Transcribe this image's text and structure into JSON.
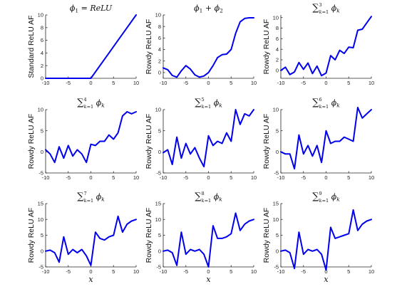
{
  "colors": {
    "series": "#0000EE",
    "axis": "#262626"
  },
  "chart_data": [
    {
      "type": "line",
      "title": "ϕ1 = ReLU",
      "ylabel": "Standard ReLU AF",
      "xlabel": "",
      "xlim": [
        -10,
        10
      ],
      "ylim": [
        0,
        10
      ],
      "xticks": [
        -10,
        -5,
        0,
        5,
        10
      ],
      "yticks": [
        0,
        2,
        4,
        6,
        8,
        10
      ],
      "x": [
        -10,
        -8,
        -6,
        -4,
        -2,
        0,
        2,
        4,
        6,
        8,
        10
      ],
      "y": [
        0,
        0,
        0,
        0,
        0,
        0,
        2,
        4,
        6,
        8,
        10
      ]
    },
    {
      "type": "line",
      "title": "ϕ1 + ϕ2",
      "ylabel": "Rowdy ReLU AF",
      "xlabel": "",
      "xlim": [
        -10,
        10
      ],
      "ylim": [
        -1,
        10
      ],
      "xticks": [
        -10,
        -5,
        0,
        5,
        10
      ],
      "yticks": [
        0,
        2,
        4,
        6,
        8,
        10
      ],
      "x": [
        -10,
        -9,
        -8,
        -7,
        -6,
        -5,
        -4,
        -3,
        -2,
        -1,
        0,
        1,
        2,
        3,
        4,
        5,
        6,
        7,
        8,
        9,
        10
      ],
      "y": [
        0.8,
        0.5,
        -0.5,
        -0.8,
        0.3,
        1.2,
        0.6,
        -0.4,
        -0.8,
        -0.6,
        0,
        1.2,
        2.6,
        3.1,
        3.2,
        4,
        6.8,
        8.8,
        9.4,
        9.5,
        9.5
      ]
    },
    {
      "type": "line",
      "title": "∑k=1..3 ϕk",
      "ylabel": "Rowdy ReLU AF",
      "xlabel": "",
      "xlim": [
        -10,
        10
      ],
      "ylim": [
        -1.5,
        10.5
      ],
      "xticks": [
        -10,
        -5,
        0,
        5,
        10
      ],
      "yticks": [
        0,
        2,
        4,
        6,
        8,
        10
      ],
      "x": [
        -10,
        -9,
        -8,
        -7,
        -6,
        -5,
        -4,
        -3,
        -2,
        -1,
        0,
        1,
        2,
        3,
        4,
        5,
        6,
        7,
        8,
        9,
        10
      ],
      "y": [
        0,
        0.6,
        -0.8,
        -0.3,
        1.5,
        0.2,
        1.4,
        -0.6,
        0.8,
        -1,
        -0.5,
        2.8,
        2,
        3.8,
        3.2,
        4.4,
        4.3,
        7.6,
        7.8,
        9,
        10.2
      ]
    },
    {
      "type": "line",
      "title": "∑k=1..4 ϕk",
      "ylabel": "Rowdy ReLU AF",
      "xlabel": "",
      "xlim": [
        -10,
        10
      ],
      "ylim": [
        -5,
        10
      ],
      "xticks": [
        -10,
        -5,
        0,
        5,
        10
      ],
      "yticks": [
        -5,
        0,
        5,
        10
      ],
      "x": [
        -10,
        -9,
        -8,
        -7,
        -6,
        -5,
        -4,
        -3,
        -2,
        -1,
        0,
        1,
        2,
        3,
        4,
        5,
        6,
        7,
        8,
        9,
        10
      ],
      "y": [
        0.5,
        -0.5,
        -2.5,
        1.2,
        -1.5,
        1.5,
        -1,
        0.5,
        -0.5,
        -2.5,
        1.8,
        1.5,
        2.5,
        2.5,
        4,
        3,
        4.5,
        8.5,
        9.5,
        9,
        9.5
      ]
    },
    {
      "type": "line",
      "title": "∑k=1..5 ϕk",
      "ylabel": "Rowdy ReLU AF",
      "xlabel": "",
      "xlim": [
        -10,
        10
      ],
      "ylim": [
        -5,
        10
      ],
      "xticks": [
        -10,
        -5,
        0,
        5,
        10
      ],
      "yticks": [
        -5,
        0,
        5,
        10
      ],
      "x": [
        -10,
        -9,
        -8,
        -7,
        -6,
        -5,
        -4,
        -3,
        -2,
        -1,
        0,
        1,
        2,
        3,
        4,
        5,
        6,
        7,
        8,
        9,
        10
      ],
      "y": [
        -0.2,
        0.5,
        -3,
        3.5,
        -1.5,
        2,
        -0.5,
        1,
        -1.5,
        -3.5,
        3.8,
        1.5,
        2.5,
        2,
        4.5,
        2.5,
        10,
        6.5,
        9,
        8.5,
        10
      ]
    },
    {
      "type": "line",
      "title": "∑k=1..6 ϕk",
      "ylabel": "Rowdy ReLU AF",
      "xlabel": "",
      "xlim": [
        -10,
        10
      ],
      "ylim": [
        -5,
        10
      ],
      "xticks": [
        -10,
        -5,
        0,
        5,
        10
      ],
      "yticks": [
        -5,
        0,
        5,
        10
      ],
      "x": [
        -10,
        -9,
        -8,
        -7,
        -6,
        -5,
        -4,
        -3,
        -2,
        -1,
        0,
        1,
        2,
        3,
        4,
        5,
        6,
        7,
        8,
        9,
        10
      ],
      "y": [
        0,
        -0.5,
        -0.5,
        -4,
        4,
        -0.5,
        1.5,
        -1,
        1.5,
        -2.5,
        5,
        2,
        2.5,
        2.5,
        3.5,
        3,
        2.5,
        10.5,
        8,
        9,
        10
      ]
    },
    {
      "type": "line",
      "title": "∑k=1..7 ϕk",
      "ylabel": "Rowdy ReLU AF",
      "xlabel": "x",
      "xlim": [
        -10,
        10
      ],
      "ylim": [
        -5,
        15
      ],
      "xticks": [
        -10,
        -5,
        0,
        5,
        10
      ],
      "yticks": [
        -5,
        0,
        5,
        10,
        15
      ],
      "x": [
        -10,
        -9,
        -8,
        -7,
        -6,
        -5,
        -4,
        -3,
        -2,
        -1,
        0,
        1,
        2,
        3,
        4,
        5,
        6,
        7,
        8,
        9,
        10
      ],
      "y": [
        0,
        0.3,
        -0.5,
        -3.5,
        4.5,
        -1,
        0.5,
        -0.5,
        0.5,
        -1.5,
        -4.5,
        6,
        4,
        3.5,
        4.5,
        5,
        11,
        6,
        8.5,
        9.5,
        10
      ]
    },
    {
      "type": "line",
      "title": "∑k=1..8 ϕk",
      "ylabel": "Rowdy ReLU AF",
      "xlabel": "x",
      "xlim": [
        -10,
        10
      ],
      "ylim": [
        -5,
        15
      ],
      "xticks": [
        -10,
        -5,
        0,
        5,
        10
      ],
      "yticks": [
        -5,
        0,
        5,
        10,
        15
      ],
      "x": [
        -10,
        -9,
        -8,
        -7,
        -6,
        -5,
        -4,
        -3,
        -2,
        -1,
        0,
        1,
        2,
        3,
        4,
        5,
        6,
        7,
        8,
        9,
        10
      ],
      "y": [
        0,
        0.3,
        -0.5,
        -4.5,
        6,
        -1,
        0.5,
        0,
        0.5,
        -1,
        -5,
        8,
        4,
        4,
        4.5,
        5.5,
        12,
        6.5,
        8.5,
        9.5,
        10
      ]
    },
    {
      "type": "line",
      "title": "∑k=1..9 ϕk",
      "ylabel": "Rowdy ReLU AF",
      "xlabel": "x",
      "xlim": [
        -10,
        10
      ],
      "ylim": [
        -5,
        15
      ],
      "xticks": [
        -10,
        -5,
        0,
        5,
        10
      ],
      "yticks": [
        -5,
        0,
        5,
        10,
        15
      ],
      "x": [
        -10,
        -9,
        -8,
        -7,
        -6,
        -5,
        -4,
        -3,
        -2,
        -1,
        0,
        1,
        2,
        3,
        4,
        5,
        6,
        7,
        8,
        9,
        10
      ],
      "y": [
        0,
        0.3,
        -0.5,
        -5.5,
        6,
        -1,
        0.5,
        0,
        0.5,
        -1,
        -6,
        7.5,
        4,
        4.5,
        5,
        5.5,
        13,
        6.5,
        8.5,
        9.5,
        10
      ]
    }
  ]
}
